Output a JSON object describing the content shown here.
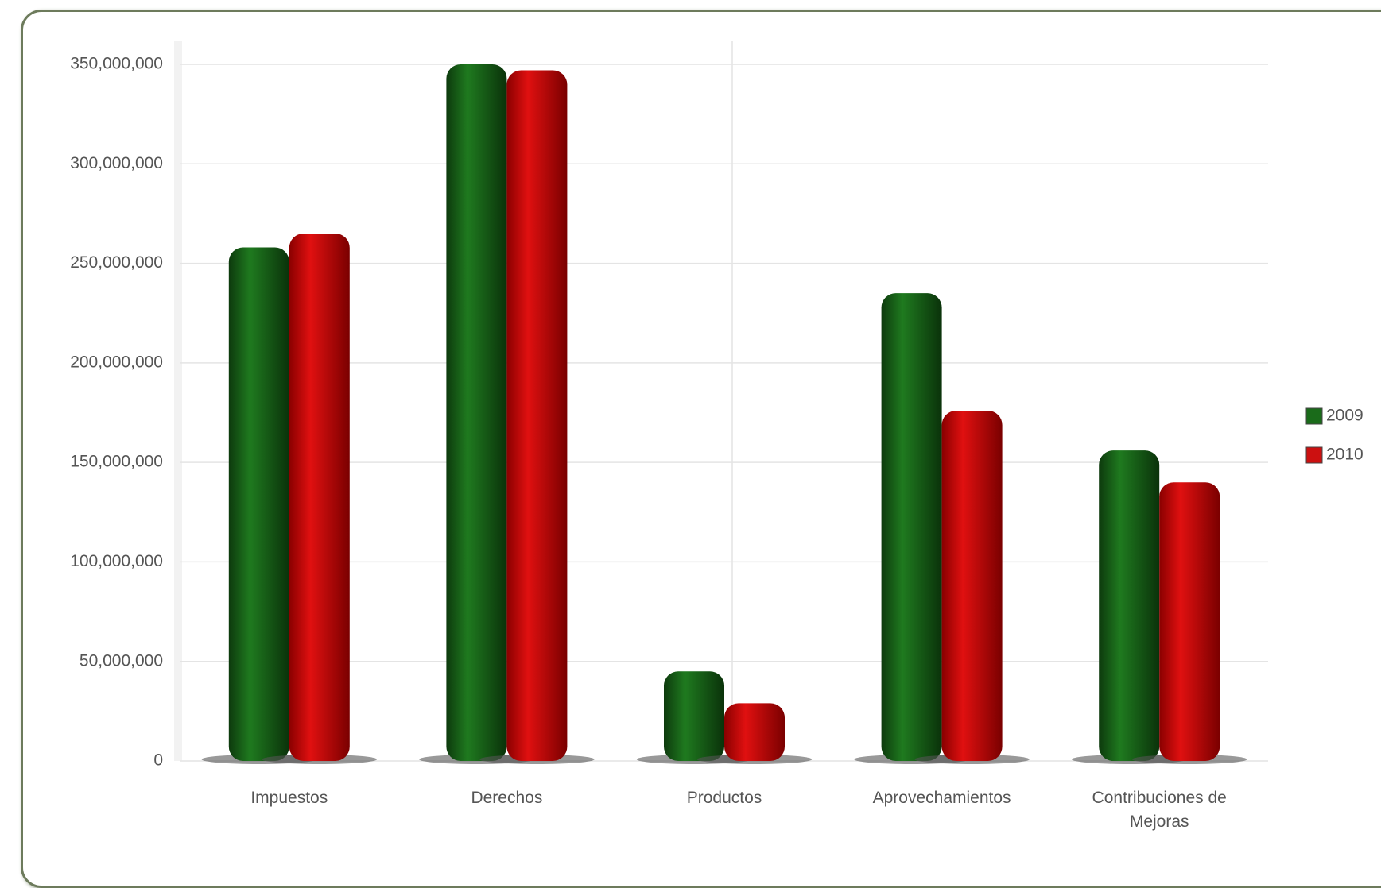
{
  "chart_data": {
    "type": "bar",
    "categories": [
      "Impuestos",
      "Derechos",
      "Productos",
      "Aprovechamientos",
      "Contribuciones de Mejoras"
    ],
    "series": [
      {
        "name": "2009",
        "color": "#1a6b1a",
        "values": [
          258000000,
          350000000,
          45000000,
          235000000,
          156000000
        ]
      },
      {
        "name": "2010",
        "color": "#cc1010",
        "values": [
          265000000,
          347000000,
          29000000,
          176000000,
          140000000
        ]
      }
    ],
    "ylim": [
      0,
      350000000
    ],
    "yticks": [
      {
        "value": 0,
        "label": "0"
      },
      {
        "value": 50000000,
        "label": "50,000,000"
      },
      {
        "value": 100000000,
        "label": "100,000,000"
      },
      {
        "value": 150000000,
        "label": "150,000,000"
      },
      {
        "value": 200000000,
        "label": "200,000,000"
      },
      {
        "value": 250000000,
        "label": "250,000,000"
      },
      {
        "value": 300000000,
        "label": "300,000,000"
      },
      {
        "value": 350000000,
        "label": "350,000,000"
      }
    ],
    "grid": true,
    "legend": "right"
  }
}
